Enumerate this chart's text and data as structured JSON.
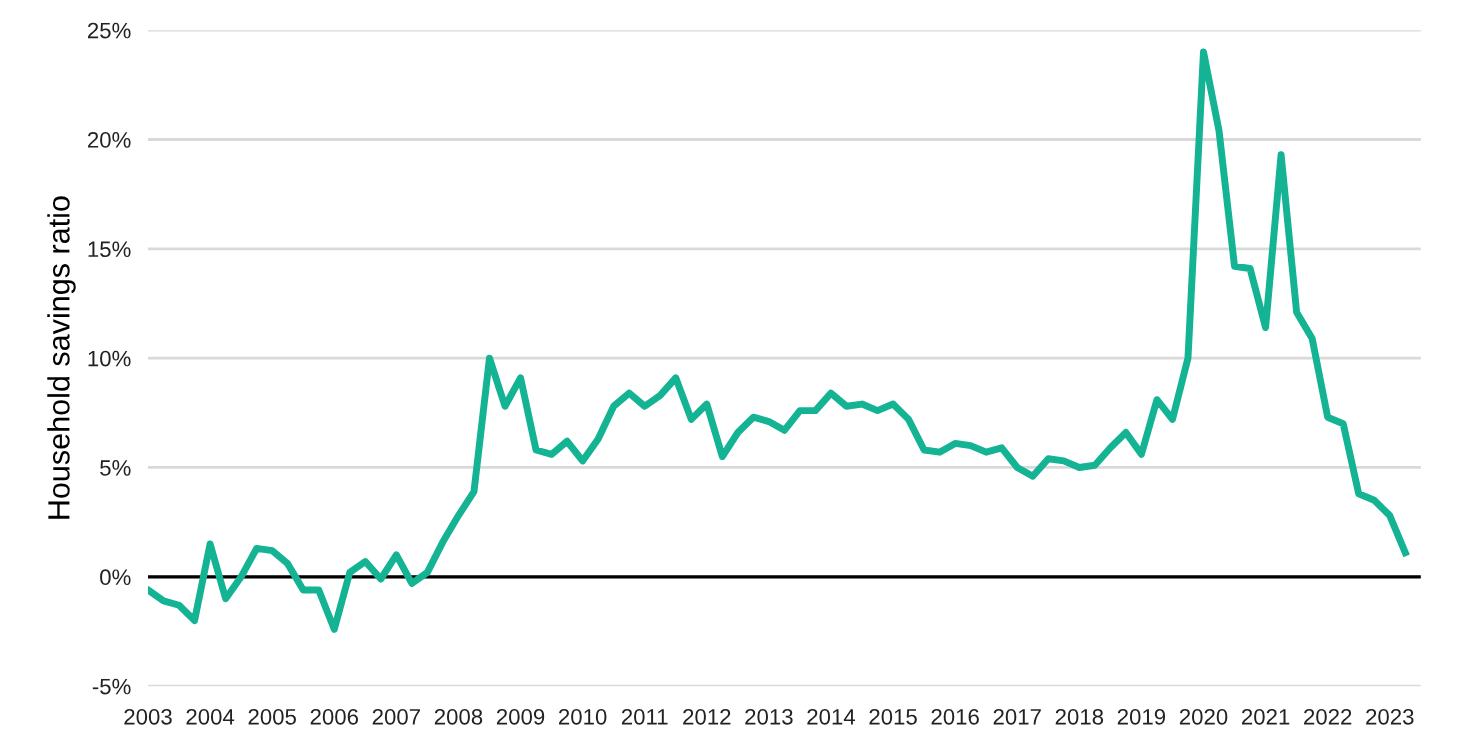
{
  "chart_data": {
    "type": "line",
    "ylabel": "Household savings ratio",
    "x": [
      2003.0,
      2003.25,
      2003.5,
      2003.75,
      2004.0,
      2004.25,
      2004.5,
      2004.75,
      2005.0,
      2005.25,
      2005.5,
      2005.75,
      2006.0,
      2006.25,
      2006.5,
      2006.75,
      2007.0,
      2007.25,
      2007.5,
      2007.75,
      2008.0,
      2008.25,
      2008.5,
      2008.75,
      2009.0,
      2009.25,
      2009.5,
      2009.75,
      2010.0,
      2010.25,
      2010.5,
      2010.75,
      2011.0,
      2011.25,
      2011.5,
      2011.75,
      2012.0,
      2012.25,
      2012.5,
      2012.75,
      2013.0,
      2013.25,
      2013.5,
      2013.75,
      2014.0,
      2014.25,
      2014.5,
      2014.75,
      2015.0,
      2015.25,
      2015.5,
      2015.75,
      2016.0,
      2016.25,
      2016.5,
      2016.75,
      2017.0,
      2017.25,
      2017.5,
      2017.75,
      2018.0,
      2018.25,
      2018.5,
      2018.75,
      2019.0,
      2019.25,
      2019.5,
      2019.75,
      2020.0,
      2020.25,
      2020.5,
      2020.75,
      2021.0,
      2021.25,
      2021.5,
      2021.75,
      2022.0,
      2022.25,
      2022.5,
      2022.75,
      2023.0,
      2023.25
    ],
    "series": [
      {
        "color": "#14b394",
        "values": [
          -0.6,
          -1.1,
          -1.3,
          -2.0,
          1.5,
          -1.0,
          0.0,
          1.3,
          1.2,
          0.6,
          -0.6,
          -0.6,
          -2.4,
          0.2,
          0.7,
          -0.1,
          1.0,
          -0.3,
          0.2,
          1.6,
          2.8,
          3.9,
          10.0,
          7.8,
          9.1,
          5.8,
          5.6,
          6.2,
          5.3,
          6.3,
          7.8,
          8.4,
          7.8,
          8.3,
          9.1,
          7.2,
          7.9,
          5.5,
          6.6,
          7.3,
          7.1,
          6.7,
          7.6,
          7.6,
          8.4,
          7.8,
          7.9,
          7.6,
          7.9,
          7.2,
          5.8,
          5.7,
          6.1,
          6.0,
          5.7,
          5.9,
          5.0,
          4.6,
          5.4,
          5.3,
          5.0,
          5.1,
          5.9,
          6.6,
          5.6,
          8.1,
          7.2,
          10.0,
          24.0,
          20.4,
          14.2,
          14.1,
          11.4,
          19.3,
          12.1,
          10.9,
          7.3,
          7.0,
          3.8,
          3.5,
          2.8,
          1.1
        ]
      }
    ],
    "xlim": [
      2003,
      2023.5
    ],
    "xticks": [
      2003,
      2004,
      2005,
      2006,
      2007,
      2008,
      2009,
      2010,
      2011,
      2012,
      2013,
      2014,
      2015,
      2016,
      2017,
      2018,
      2019,
      2020,
      2021,
      2022,
      2023
    ],
    "ylim": [
      -5,
      25
    ],
    "yticks": [
      {
        "value": -5,
        "label": "-5%"
      },
      {
        "value": 0,
        "label": "0%"
      },
      {
        "value": 5,
        "label": "5%"
      },
      {
        "value": 10,
        "label": "10%"
      },
      {
        "value": 15,
        "label": "15%"
      },
      {
        "value": 20,
        "label": "20%"
      },
      {
        "value": 25,
        "label": "25%"
      }
    ],
    "grid": "y",
    "ref_lines": [
      {
        "axis": "y",
        "value": 0,
        "color": "#000000"
      }
    ],
    "marker": "none",
    "line_style": "solid"
  }
}
